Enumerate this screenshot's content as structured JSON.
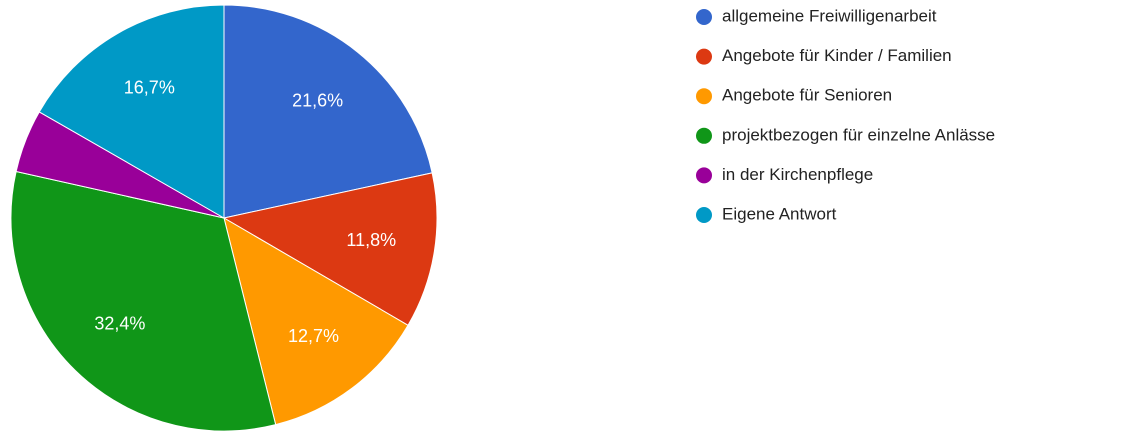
{
  "chart_data": {
    "type": "pie",
    "categories": [
      "allgemeine Freiwilligenarbeit",
      "Angebote für Kinder / Familien",
      "Angebote für Senioren",
      "projektbezogen für einzelne Anlässe",
      "in der Kirchenpflege",
      "Eigene Antwort"
    ],
    "values": [
      21.6,
      11.8,
      12.7,
      32.4,
      4.8,
      16.7
    ],
    "value_labels": [
      "21,6%",
      "11,8%",
      "12,7%",
      "32,4%",
      null,
      "16,7%"
    ],
    "colors": [
      "#3366cc",
      "#dc3912",
      "#ff9900",
      "#109618",
      "#990099",
      "#0099c6"
    ],
    "legend": "right"
  }
}
